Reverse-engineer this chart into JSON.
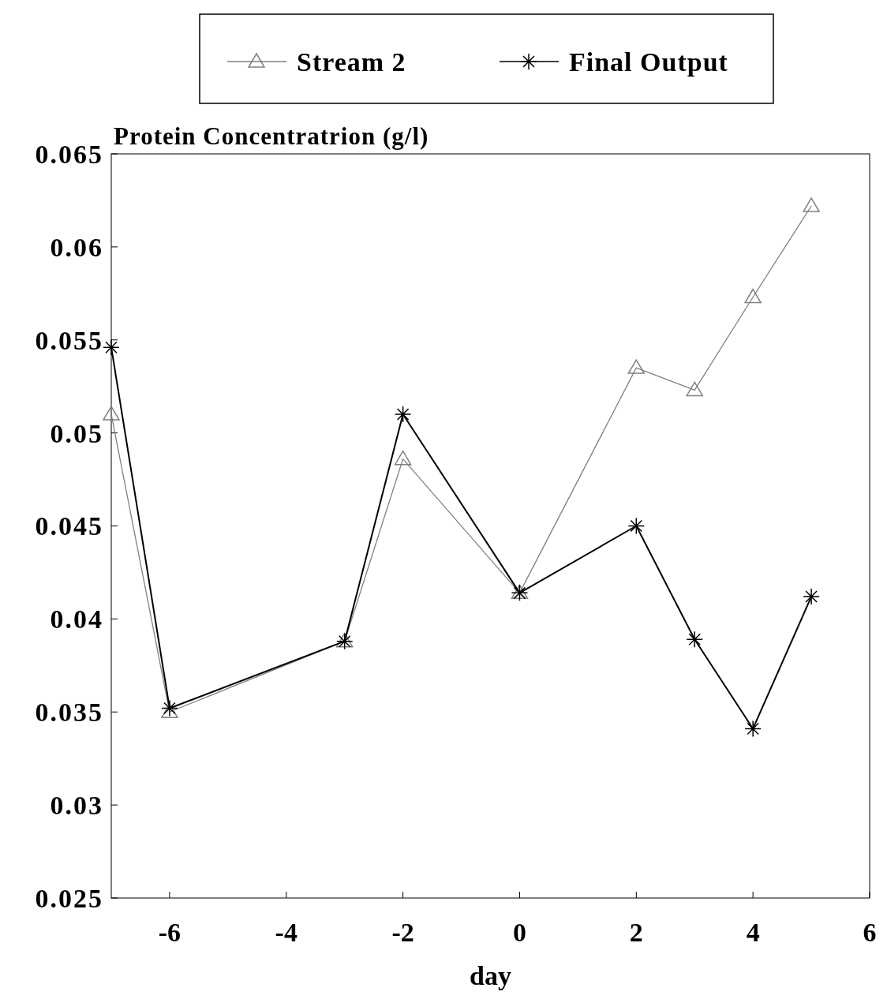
{
  "chart_data": {
    "type": "line",
    "ylabel": "Protein Concentratrion (g/l)",
    "xlabel": "day",
    "x": [
      -7,
      -6,
      -3,
      -2,
      0,
      2,
      3,
      4,
      5
    ],
    "series": [
      {
        "name": "Stream 2",
        "color": "#808080",
        "marker": "triangle",
        "values": [
          0.051,
          0.035,
          0.0388,
          0.0486,
          0.0414,
          0.0535,
          0.0523,
          0.0573,
          0.0622
        ]
      },
      {
        "name": "Final Output",
        "color": "#000000",
        "marker": "cross",
        "values": [
          0.0546,
          0.0352,
          0.0388,
          0.051,
          0.0414,
          0.045,
          0.0389,
          0.0341,
          0.0412
        ]
      }
    ],
    "xlim": [
      -7,
      6
    ],
    "xticks": [
      -6,
      -4,
      -2,
      0,
      2,
      4,
      6
    ],
    "ylim": [
      0.025,
      0.065
    ],
    "yticks": [
      0.025,
      0.03,
      0.035,
      0.04,
      0.045,
      0.05,
      0.055,
      0.06,
      0.065
    ],
    "legend": "top",
    "grid": false,
    "line_style": "solid"
  }
}
